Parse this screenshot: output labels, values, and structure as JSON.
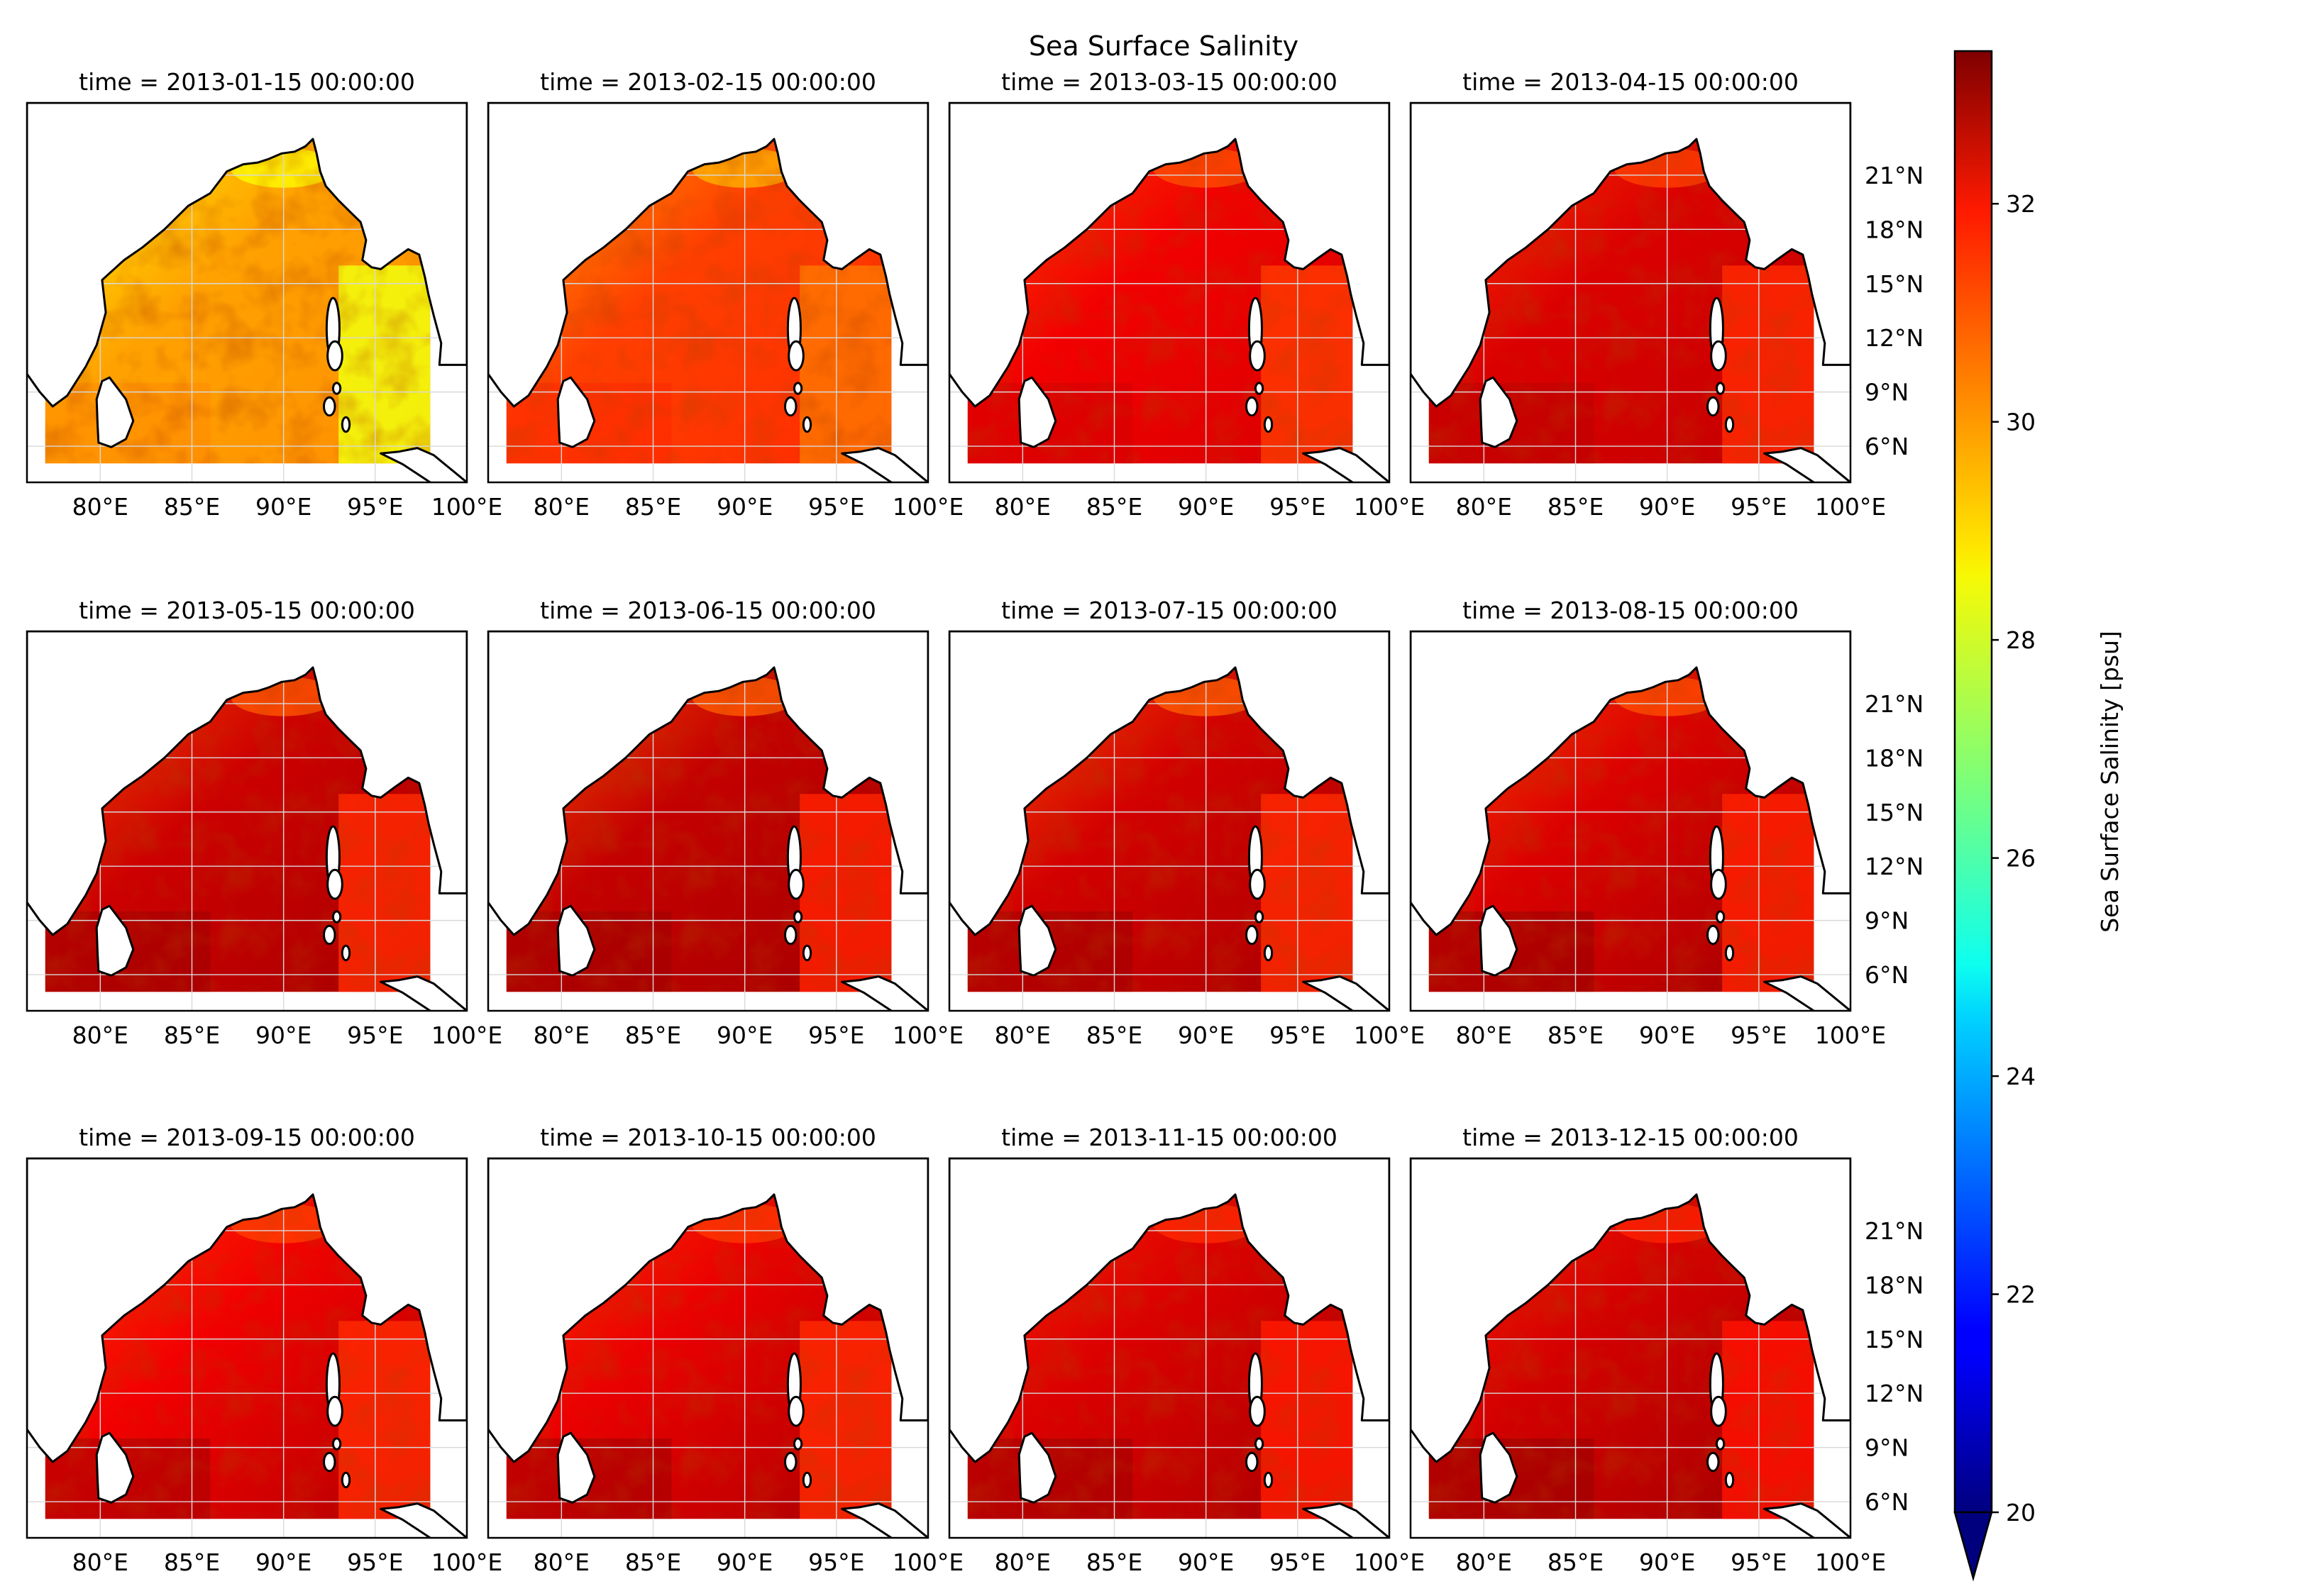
{
  "chart_data": {
    "type": "heatmap",
    "title": "Sea Surface Salinity",
    "colorbar": {
      "label": "Sea Surface Salinity [psu]",
      "colormap": "jet",
      "vmin": 20,
      "vmax": 33.4,
      "ticks": [
        "20",
        "22",
        "24",
        "26",
        "28",
        "30",
        "32"
      ],
      "extend": "min"
    },
    "x_ticks": [
      "80°E",
      "85°E",
      "90°E",
      "95°E",
      "100°E"
    ],
    "x_tick_values": [
      80,
      85,
      90,
      95,
      100
    ],
    "y_ticks": [
      "6°N",
      "9°N",
      "12°N",
      "15°N",
      "18°N",
      "21°N"
    ],
    "y_tick_values": [
      6,
      9,
      12,
      15,
      18,
      21
    ],
    "xlim": [
      76,
      100
    ],
    "ylim": [
      4,
      25
    ],
    "panels": [
      {
        "title": "time = 2013-01-15 00:00:00",
        "mean_salinity": 29.6,
        "east_salinity": 28.2,
        "north_salinity": 28.4,
        "south_salinity": 29.9
      },
      {
        "title": "time = 2013-02-15 00:00:00",
        "mean_salinity": 30.9,
        "east_salinity": 30.2,
        "north_salinity": 29.4,
        "south_salinity": 31.2
      },
      {
        "title": "time = 2013-03-15 00:00:00",
        "mean_salinity": 31.9,
        "east_salinity": 31.0,
        "north_salinity": 30.7,
        "south_salinity": 32.3
      },
      {
        "title": "time = 2013-04-15 00:00:00",
        "mean_salinity": 32.2,
        "east_salinity": 31.2,
        "north_salinity": 30.9,
        "south_salinity": 32.6
      },
      {
        "title": "time = 2013-05-15 00:00:00",
        "mean_salinity": 32.4,
        "east_salinity": 31.2,
        "north_salinity": 30.6,
        "south_salinity": 33.0
      },
      {
        "title": "time = 2013-06-15 00:00:00",
        "mean_salinity": 32.5,
        "east_salinity": 31.3,
        "north_salinity": 30.5,
        "south_salinity": 33.0
      },
      {
        "title": "time = 2013-07-15 00:00:00",
        "mean_salinity": 32.3,
        "east_salinity": 31.2,
        "north_salinity": 30.5,
        "south_salinity": 33.0
      },
      {
        "title": "time = 2013-08-15 00:00:00",
        "mean_salinity": 32.2,
        "east_salinity": 31.3,
        "north_salinity": 30.7,
        "south_salinity": 33.1
      },
      {
        "title": "time = 2013-09-15 00:00:00",
        "mean_salinity": 31.9,
        "east_salinity": 31.2,
        "north_salinity": 30.9,
        "south_salinity": 32.9
      },
      {
        "title": "time = 2013-10-15 00:00:00",
        "mean_salinity": 32.0,
        "east_salinity": 31.2,
        "north_salinity": 31.0,
        "south_salinity": 33.0
      },
      {
        "title": "time = 2013-11-15 00:00:00",
        "mean_salinity": 32.2,
        "east_salinity": 31.4,
        "north_salinity": 31.2,
        "south_salinity": 33.0
      },
      {
        "title": "time = 2013-12-15 00:00:00",
        "mean_salinity": 32.3,
        "east_salinity": 31.5,
        "north_salinity": 31.3,
        "south_salinity": 33.1
      }
    ]
  }
}
